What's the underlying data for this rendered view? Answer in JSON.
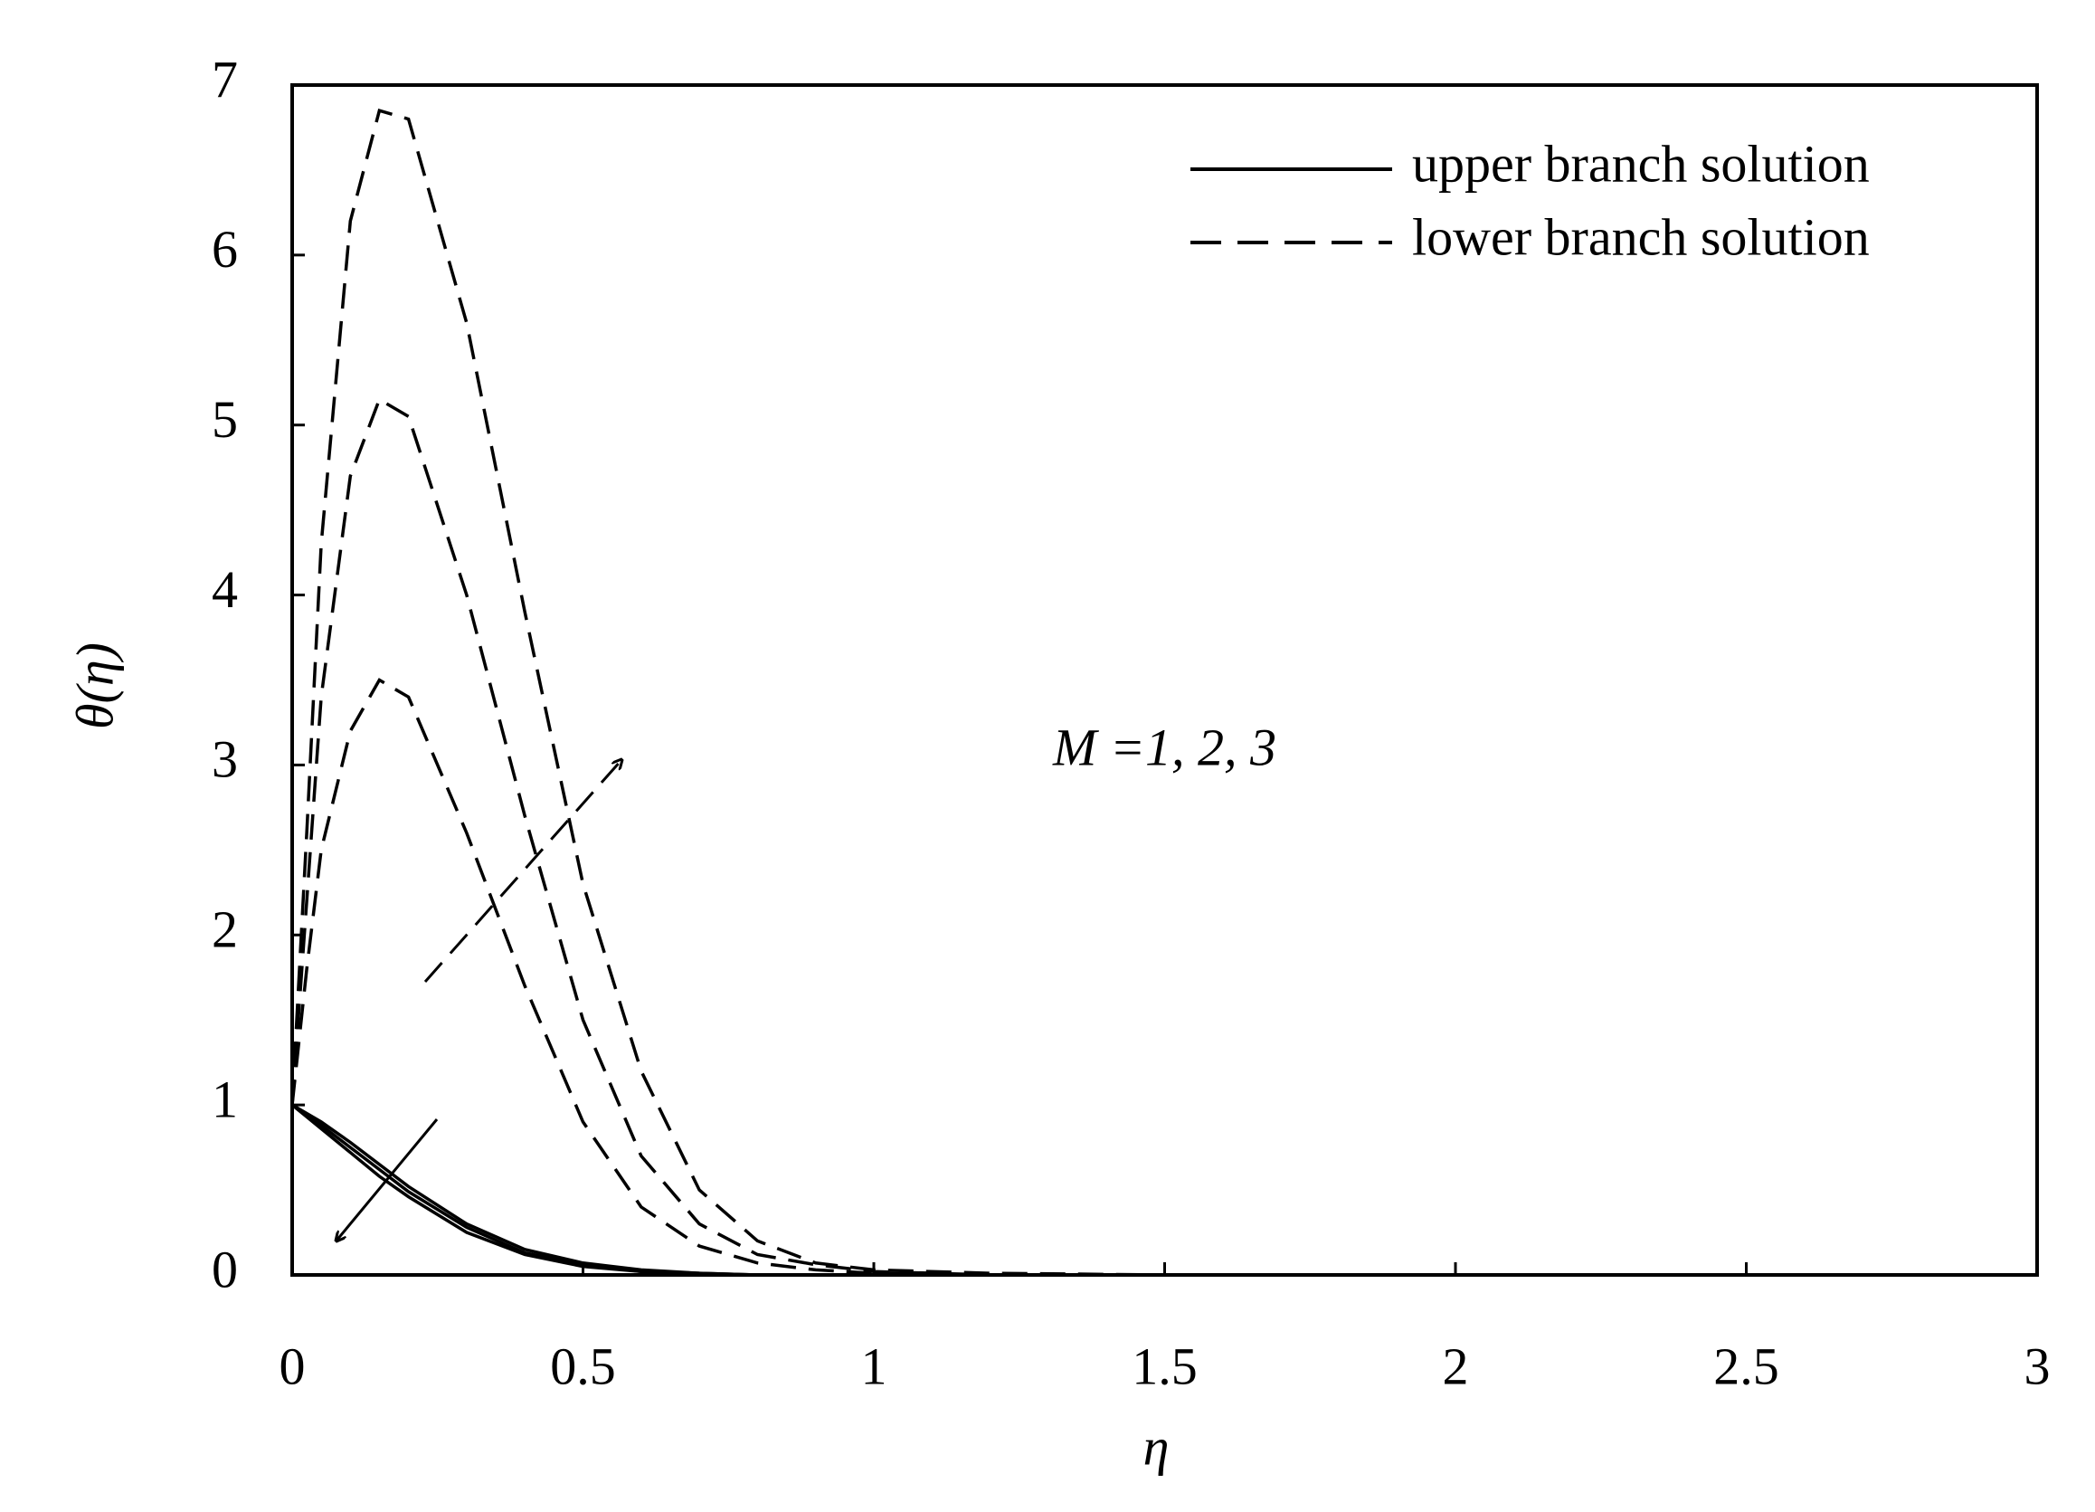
{
  "chart_data": {
    "type": "line",
    "xlabel": "η",
    "ylabel": "θ(η)",
    "annotation": "M =1, 2, 3",
    "xlim": [
      0,
      3
    ],
    "xticks": [
      0,
      0.5,
      1,
      1.5,
      2,
      2.5,
      3
    ],
    "ylim": [
      0,
      7
    ],
    "yticks": [
      0,
      1,
      2,
      3,
      4,
      5,
      6,
      7
    ],
    "x": [
      0,
      0.025,
      0.05,
      0.1,
      0.15,
      0.2,
      0.3,
      0.4,
      0.5,
      0.6,
      0.7,
      0.8,
      0.9,
      1,
      1.2,
      1.5,
      2,
      2.5,
      3
    ],
    "series": [
      {
        "name": "upper branch solution",
        "color": "#000000",
        "dash": false,
        "values": [
          1,
          0.95,
          0.9,
          0.78,
          0.65,
          0.52,
          0.3,
          0.15,
          0.07,
          0.03,
          0.01,
          0,
          0,
          0,
          0,
          0,
          0,
          0,
          0
        ]
      },
      {
        "name": "lower branch solution",
        "color": "#000000",
        "dash": true,
        "values": [
          1,
          1.8,
          2.5,
          3.2,
          3.5,
          3.4,
          2.6,
          1.7,
          0.9,
          0.4,
          0.17,
          0.07,
          0.03,
          0.01,
          0,
          0,
          0,
          0,
          0
        ]
      },
      {
        "color": "#000000",
        "dash": false,
        "values": [
          1,
          0.94,
          0.88,
          0.75,
          0.62,
          0.49,
          0.28,
          0.13,
          0.06,
          0.02,
          0.01,
          0,
          0,
          0,
          0,
          0,
          0,
          0,
          0
        ]
      },
      {
        "color": "#000000",
        "dash": true,
        "values": [
          1,
          2.2,
          3.4,
          4.7,
          5.15,
          5.05,
          4,
          2.7,
          1.5,
          0.7,
          0.3,
          0.12,
          0.06,
          0.02,
          0,
          0,
          0,
          0,
          0
        ]
      },
      {
        "color": "#000000",
        "dash": false,
        "values": [
          1,
          0.93,
          0.86,
          0.72,
          0.58,
          0.46,
          0.25,
          0.12,
          0.05,
          0.02,
          0,
          0,
          0,
          0,
          0,
          0,
          0,
          0,
          0
        ]
      },
      {
        "color": "#000000",
        "dash": true,
        "values": [
          1,
          2.6,
          4.3,
          6.2,
          6.85,
          6.8,
          5.6,
          3.9,
          2.3,
          1.2,
          0.5,
          0.2,
          0.07,
          0.03,
          0.01,
          0,
          0,
          0,
          0
        ]
      }
    ]
  }
}
